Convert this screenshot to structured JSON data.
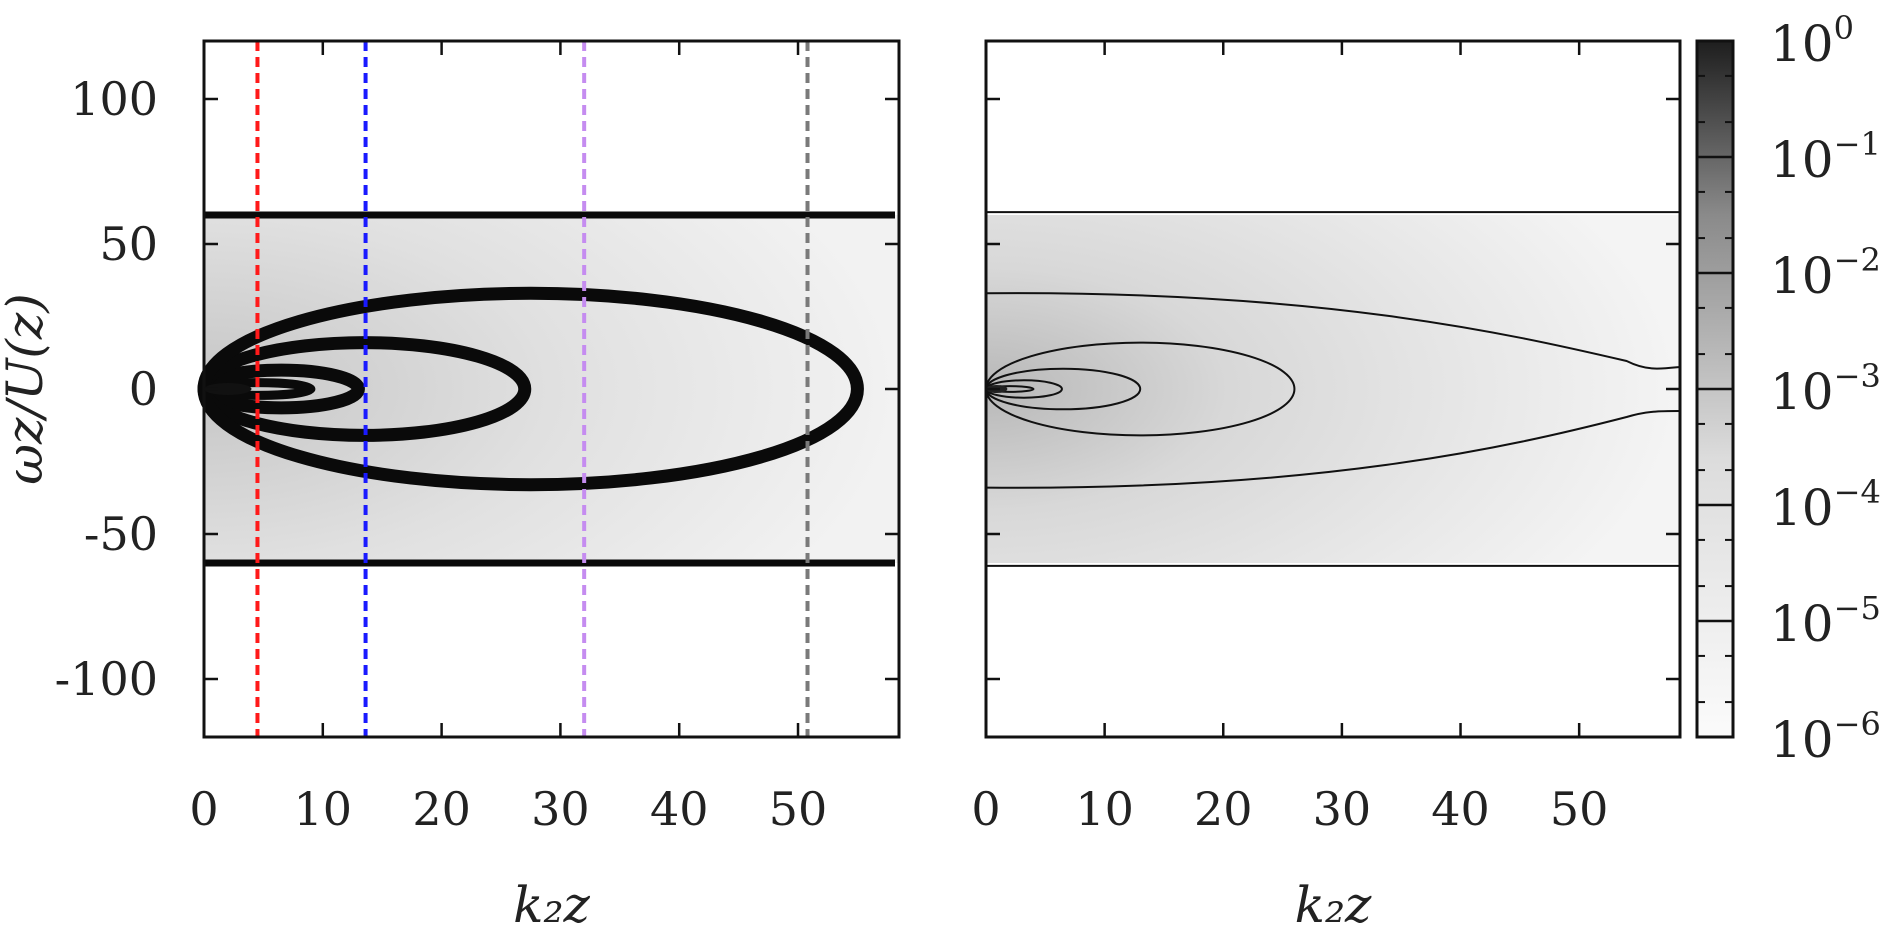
{
  "chart_data": [
    {
      "type": "heatmap",
      "panel": "left",
      "xlabel": "k₂z",
      "ylabel": "ωz/U(z)",
      "xlim": [
        0,
        58.5
      ],
      "ylim": [
        -120,
        120
      ],
      "xticks": [
        0,
        10,
        20,
        30,
        40,
        50
      ],
      "yticks": [
        100,
        50,
        0,
        -50,
        -100
      ],
      "shaded_band": [
        -60,
        60
      ],
      "contours": [
        {
          "type": "ellipse",
          "cx": 4.5,
          "cy": 0,
          "rx": 4.5,
          "ry": 2.2
        },
        {
          "type": "ellipse",
          "cx": 6.5,
          "cy": 0,
          "rx": 6.5,
          "ry": 6.5
        },
        {
          "type": "ellipse",
          "cx": 13.5,
          "cy": 0,
          "rx": 13.5,
          "ry": 16
        },
        {
          "type": "ellipse",
          "cx": 27.5,
          "cy": 0,
          "rx": 27.5,
          "ry": 33
        },
        {
          "type": "hline",
          "y": 60
        },
        {
          "type": "hline",
          "y": -60
        }
      ],
      "vlines": [
        {
          "x": 4.5,
          "color": "#ff1a1a"
        },
        {
          "x": 13.6,
          "color": "#1a1aff"
        },
        {
          "x": 32,
          "color": "#c58cf0"
        },
        {
          "x": 50.8,
          "color": "#7a7a7a"
        }
      ]
    },
    {
      "type": "heatmap",
      "panel": "right",
      "xlabel": "k₂z",
      "xlim": [
        0,
        58.5
      ],
      "ylim": [
        -120,
        120
      ],
      "xticks": [
        0,
        10,
        20,
        30,
        40,
        50
      ],
      "shaded_band": [
        -60,
        60
      ],
      "contours": [
        {
          "type": "ellipse",
          "cx": 2,
          "cy": 0,
          "rx": 2,
          "ry": 1
        },
        {
          "type": "ellipse",
          "cx": 3.2,
          "cy": 0,
          "rx": 3.2,
          "ry": 3
        },
        {
          "type": "ellipse",
          "cx": 6.5,
          "cy": 0,
          "rx": 6.5,
          "ry": 7
        },
        {
          "type": "ellipse",
          "cx": 13,
          "cy": 0,
          "rx": 13,
          "ry": 16
        },
        {
          "type": "lens",
          "top": 33,
          "bottom": -34,
          "pinch_x": 54,
          "pinch_y": 3
        },
        {
          "type": "hline",
          "y": 61
        },
        {
          "type": "hline",
          "y": -61
        }
      ]
    }
  ],
  "colorbar": {
    "scale": "log",
    "range": [
      1e-06,
      1
    ],
    "labels": [
      {
        "value": 0,
        "base": "10",
        "exp": "0"
      },
      {
        "value": -1,
        "base": "10",
        "exp": "−1"
      },
      {
        "value": -2,
        "base": "10",
        "exp": "−2"
      },
      {
        "value": -3,
        "base": "10",
        "exp": "−3"
      },
      {
        "value": -4,
        "base": "10",
        "exp": "−4"
      },
      {
        "value": -5,
        "base": "10",
        "exp": "−5"
      },
      {
        "value": -6,
        "base": "10",
        "exp": "−6"
      }
    ],
    "colors": {
      "high": "#1e1e1e",
      "low": "#fbfbfb"
    }
  },
  "left_y_tick_labels": [
    "100",
    "50",
    "0",
    "-50",
    "-100"
  ],
  "x_tick_labels": [
    "0",
    "10",
    "20",
    "30",
    "40",
    "50"
  ]
}
